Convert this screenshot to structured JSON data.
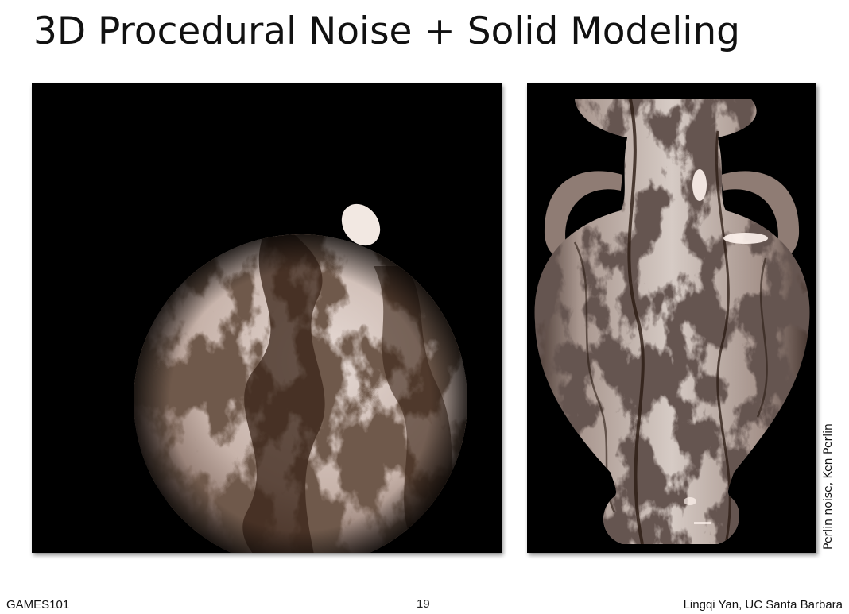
{
  "slide": {
    "title": "3D Procedural Noise + Solid Modeling"
  },
  "figures": {
    "left": {
      "name": "marble-sphere",
      "background": "#000000"
    },
    "right": {
      "name": "marble-vase",
      "background": "#000000"
    },
    "credit": "Perlin noise, Ken Perlin"
  },
  "footer": {
    "course": "GAMES101",
    "page_number": "19",
    "author": "Lingqi Yan, UC Santa Barbara"
  },
  "colors": {
    "marble_light": "#ddd0ca",
    "marble_dark": "#2a1a12",
    "highlight": "#fff4ee"
  }
}
